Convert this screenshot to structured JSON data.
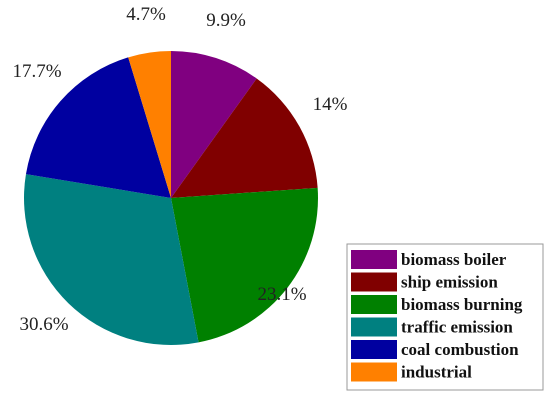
{
  "chart_data": {
    "type": "pie",
    "start_angle": "12 o'clock",
    "direction": "clockwise",
    "legend_position": "bottom-right",
    "slices": [
      {
        "label": "biomass boiler",
        "value": 9.9,
        "value_label": "9.9%",
        "color": "#800080"
      },
      {
        "label": "ship emission",
        "value": 14,
        "value_label": "14%",
        "color": "#800000"
      },
      {
        "label": "biomass burning",
        "value": 23.1,
        "value_label": "23.1%",
        "color": "#008000"
      },
      {
        "label": "traffic emission",
        "value": 30.6,
        "value_label": "30.6%",
        "color": "#008080"
      },
      {
        "label": "coal combustion",
        "value": 17.7,
        "value_label": "17.7%",
        "color": "#0000A0"
      },
      {
        "label": "industrial",
        "value": 4.7,
        "value_label": "4.7%",
        "color": "#FF8000"
      }
    ]
  }
}
